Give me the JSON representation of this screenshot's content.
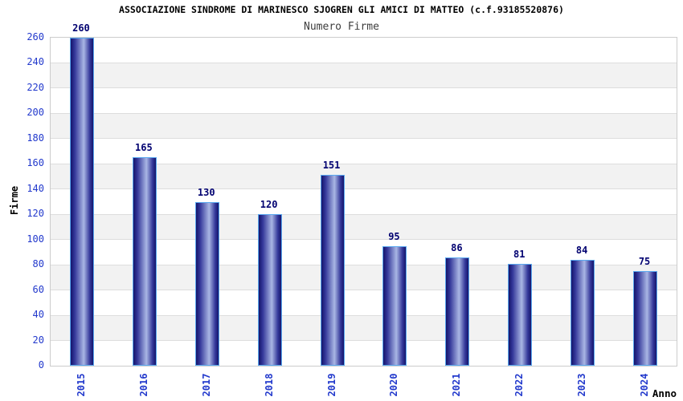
{
  "chart_data": {
    "type": "bar",
    "title": "ASSOCIAZIONE SINDROME DI MARINESCO SJOGREN GLI AMICI DI MATTEO (c.f.93185520876)",
    "subtitle": "Numero Firme",
    "xlabel": "Anno",
    "ylabel": "Firme",
    "categories": [
      "2015",
      "2016",
      "2017",
      "2018",
      "2019",
      "2020",
      "2021",
      "2022",
      "2023",
      "2024"
    ],
    "values": [
      260,
      165,
      130,
      120,
      151,
      95,
      86,
      81,
      84,
      75
    ],
    "ylim": [
      0,
      260
    ],
    "y_ticks": [
      0,
      20,
      40,
      60,
      80,
      100,
      120,
      140,
      160,
      180,
      200,
      220,
      240,
      260
    ],
    "grid": true,
    "legend": false,
    "alternating_bands": true,
    "colors": {
      "bar_edge_dark": "#15156b",
      "bar_mid_dark": "#34389a",
      "bar_highlight": "#a9b6e4",
      "bar_border": "#5aa9f0",
      "axis_tick_label": "#2239cc",
      "value_label": "#000070",
      "title_text": "#000000",
      "subtitle_text": "#3d3d3d",
      "plot_border": "#cccccc",
      "gridline": "#dddddd",
      "band_fill": "#f2f2f2",
      "background": "#ffffff"
    }
  }
}
